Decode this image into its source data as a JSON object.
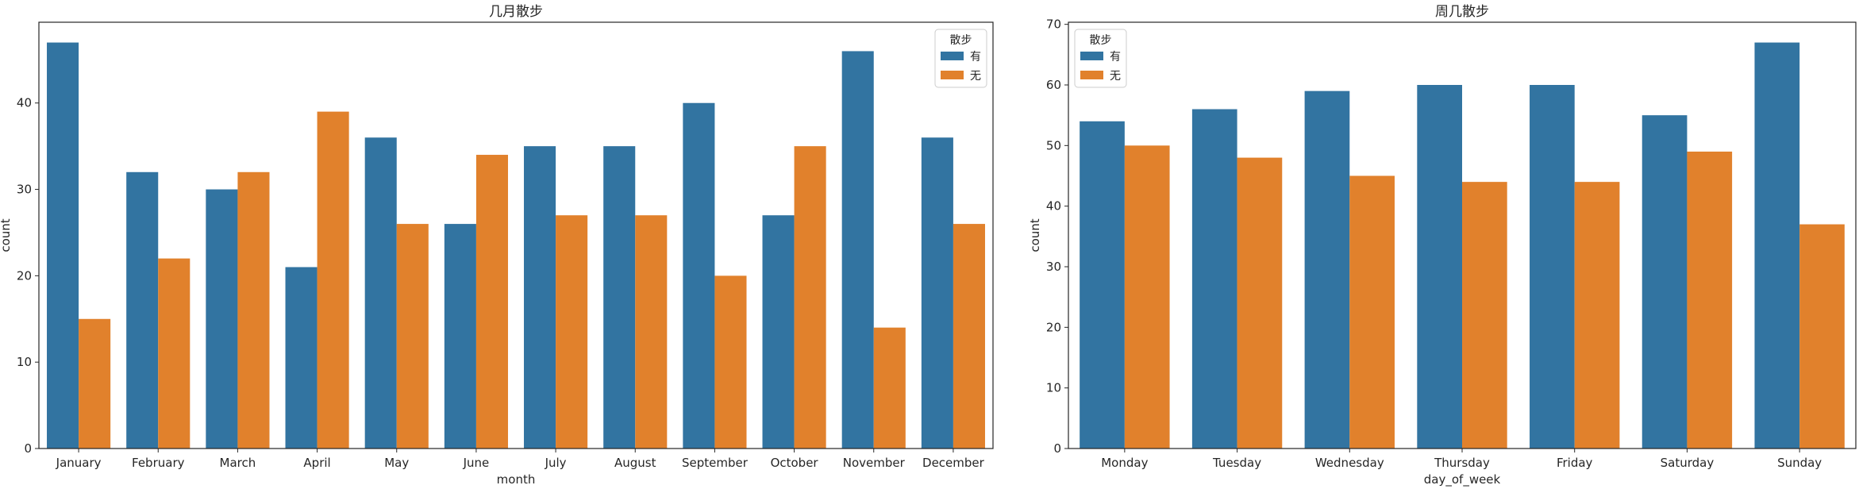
{
  "colors": {
    "series_yes": "#3274a1",
    "series_no": "#e1812c",
    "axis": "#262626"
  },
  "chart_data": [
    {
      "type": "bar",
      "title": "几月散步",
      "xlabel": "month",
      "ylabel": "count",
      "categories": [
        "January",
        "February",
        "March",
        "April",
        "May",
        "June",
        "July",
        "August",
        "September",
        "October",
        "November",
        "December"
      ],
      "ylim": [
        0,
        49.35
      ],
      "yticks": [
        0,
        10,
        20,
        30,
        40
      ],
      "grid": false,
      "legend": {
        "title": "散步",
        "placement": "top-right"
      },
      "series": [
        {
          "name": "有",
          "values": [
            47,
            32,
            30,
            21,
            36,
            26,
            35,
            35,
            40,
            27,
            46,
            36
          ]
        },
        {
          "name": "无",
          "values": [
            15,
            22,
            32,
            39,
            26,
            34,
            27,
            27,
            20,
            35,
            14,
            26
          ]
        }
      ]
    },
    {
      "type": "bar",
      "title": "周几散步",
      "xlabel": "day_of_week",
      "ylabel": "count",
      "categories": [
        "Monday",
        "Tuesday",
        "Wednesday",
        "Thursday",
        "Friday",
        "Saturday",
        "Sunday"
      ],
      "ylim": [
        0,
        70.35
      ],
      "yticks": [
        0,
        10,
        20,
        30,
        40,
        50,
        60,
        70
      ],
      "grid": false,
      "legend": {
        "title": "散步",
        "placement": "top-left"
      },
      "series": [
        {
          "name": "有",
          "values": [
            54,
            56,
            59,
            60,
            60,
            55,
            67
          ]
        },
        {
          "name": "无",
          "values": [
            50,
            48,
            45,
            44,
            44,
            49,
            37
          ]
        }
      ]
    }
  ]
}
